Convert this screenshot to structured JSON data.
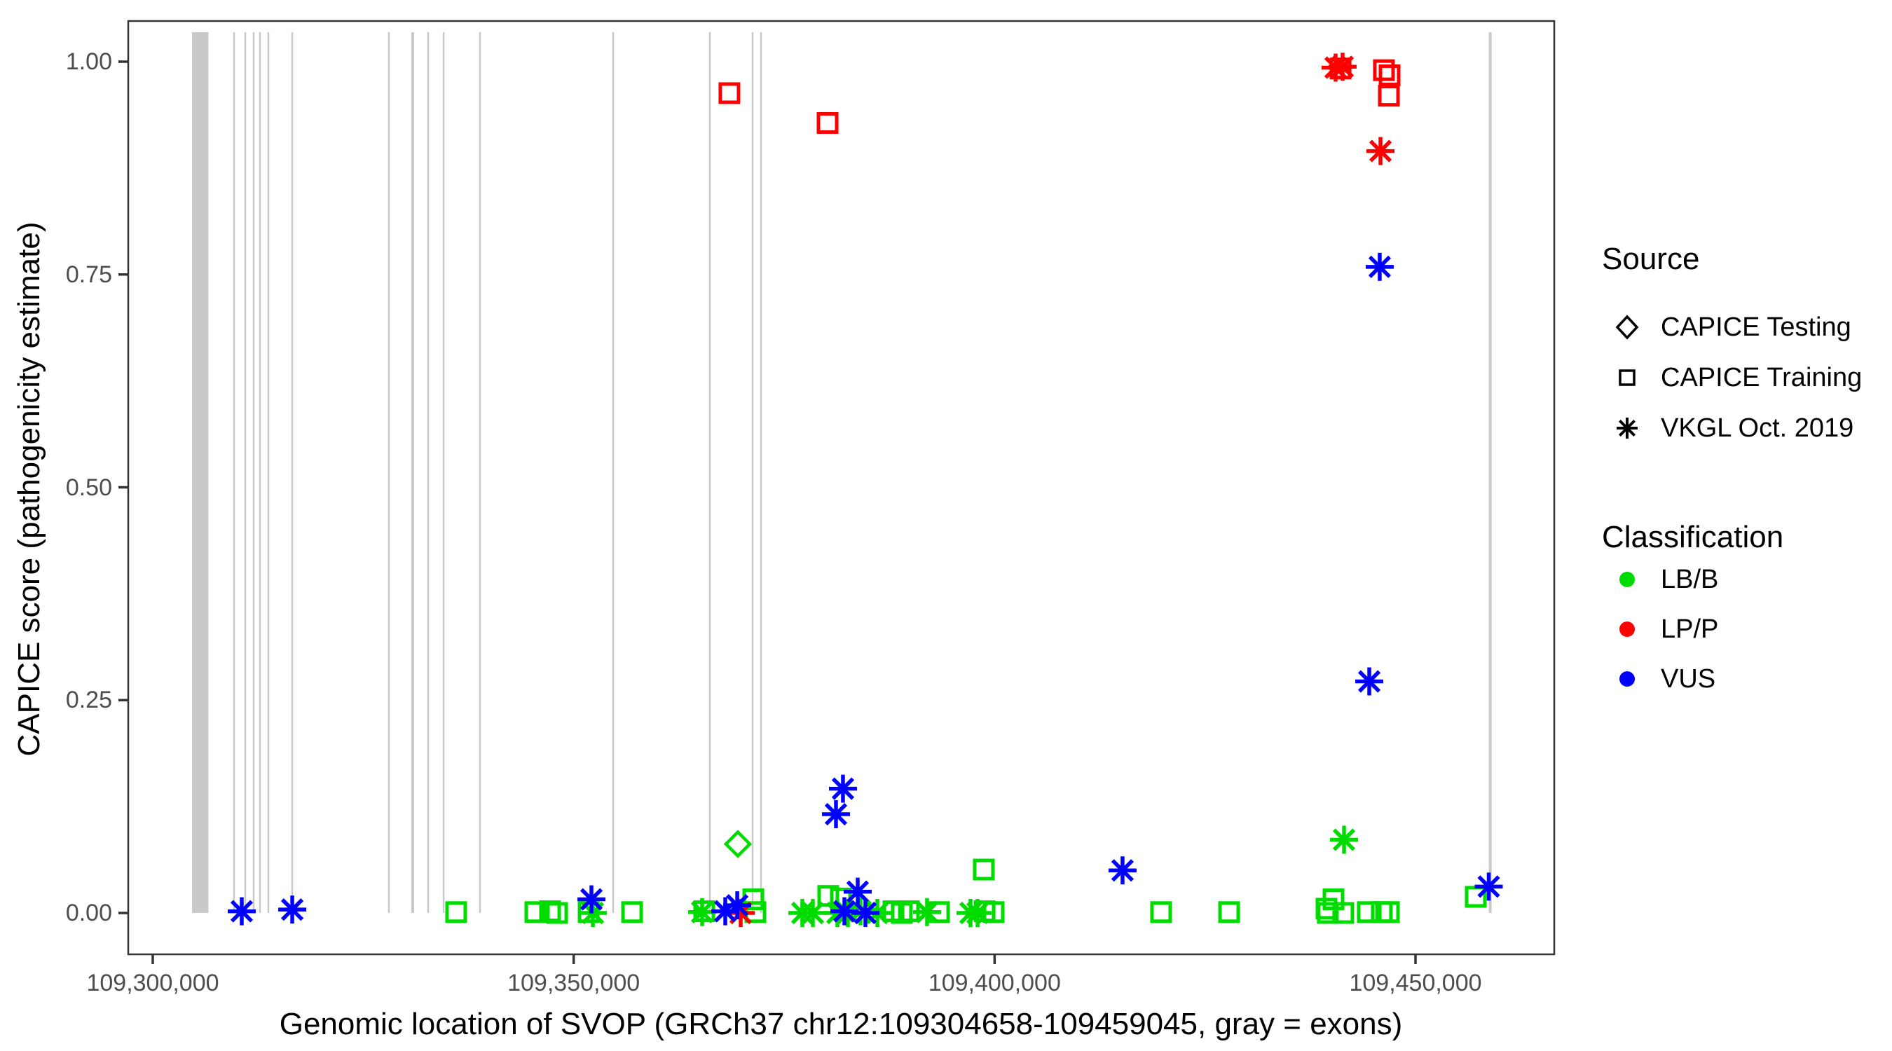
{
  "figure": {
    "x_title": "Genomic location of SVOP (GRCh37 chr12:109304658-109459045, gray = exons)",
    "y_title": "CAPICE score (pathogenicity estimate)"
  },
  "legend": {
    "source": {
      "title": "Source",
      "items": [
        {
          "label": "CAPICE Testing",
          "marker": "diamond"
        },
        {
          "label": "CAPICE Training",
          "marker": "square"
        },
        {
          "label": "VKGL Oct. 2019",
          "marker": "asterisk"
        }
      ]
    },
    "classification": {
      "title": "Classification",
      "items": [
        {
          "label": "LB/B",
          "color": "#00DB00"
        },
        {
          "label": "LP/P",
          "color": "#FF0000"
        },
        {
          "label": "VUS",
          "color": "#0000FF"
        }
      ]
    }
  },
  "chart_data": {
    "type": "scatter",
    "title": "",
    "xlabel": "Genomic location of SVOP (GRCh37 chr12:109304658-109459045, gray = exons)",
    "ylabel": "CAPICE score (pathogenicity estimate)",
    "x_ticks": [
      {
        "value": 109300000,
        "label": "109,300,000"
      },
      {
        "value": 109350000,
        "label": "109,350,000"
      },
      {
        "value": 109400000,
        "label": "109,400,000"
      },
      {
        "value": 109450000,
        "label": "109,450,000"
      }
    ],
    "y_ticks": [
      {
        "value": 0.0,
        "label": "0.00"
      },
      {
        "value": 0.25,
        "label": "0.25"
      },
      {
        "value": 0.5,
        "label": "0.50"
      },
      {
        "value": 0.75,
        "label": "0.75"
      },
      {
        "value": 1.0,
        "label": "1.00"
      }
    ],
    "xlim": [
      109297000,
      109466500
    ],
    "ylim": [
      -0.047,
      1.047
    ],
    "exon_color": "#C9C9C9",
    "exon_note": "gray = exons",
    "exon_segments": [
      {
        "start": 109304658,
        "end": 109306614
      },
      {
        "start": 109309552,
        "end": 109309760
      },
      {
        "start": 109310884,
        "end": 109311092
      },
      {
        "start": 109311883,
        "end": 109312091
      },
      {
        "start": 109312632,
        "end": 109312840
      },
      {
        "start": 109313631,
        "end": 109313839
      },
      {
        "start": 109316461,
        "end": 109316669
      },
      {
        "start": 109327948,
        "end": 109328156
      },
      {
        "start": 109330716,
        "end": 109331048
      },
      {
        "start": 109332609,
        "end": 109332817
      },
      {
        "start": 109334441,
        "end": 109334649
      },
      {
        "start": 109338769,
        "end": 109338977
      },
      {
        "start": 109354585,
        "end": 109354793
      },
      {
        "start": 109366073,
        "end": 109366281
      },
      {
        "start": 109371150,
        "end": 109371358
      },
      {
        "start": 109372149,
        "end": 109372357
      },
      {
        "start": 109458712,
        "end": 109459045
      }
    ],
    "points": [
      {
        "pos": 109368500,
        "score": 0.963,
        "source": "CAPICE Training",
        "classification": "LP/P"
      },
      {
        "pos": 109380160,
        "score": 0.928,
        "source": "CAPICE Training",
        "classification": "LP/P"
      },
      {
        "pos": 109441100,
        "score": 0.992,
        "source": "CAPICE Training",
        "classification": "LP/P"
      },
      {
        "pos": 109446250,
        "score": 0.99,
        "source": "CAPICE Training",
        "classification": "LP/P"
      },
      {
        "pos": 109446920,
        "score": 0.984,
        "source": "CAPICE Training",
        "classification": "LP/P"
      },
      {
        "pos": 109446840,
        "score": 0.96,
        "source": "CAPICE Training",
        "classification": "LP/P"
      },
      {
        "pos": 109336040,
        "score": 0.001,
        "source": "CAPICE Training",
        "classification": "LB/B"
      },
      {
        "pos": 109345450,
        "score": 0.001,
        "source": "CAPICE Training",
        "classification": "LB/B"
      },
      {
        "pos": 109347200,
        "score": 0.002,
        "source": "CAPICE Training",
        "classification": "LB/B"
      },
      {
        "pos": 109348030,
        "score": 0.0,
        "source": "CAPICE Training",
        "classification": "LB/B"
      },
      {
        "pos": 109351780,
        "score": 0.001,
        "source": "CAPICE Training",
        "classification": "LB/B"
      },
      {
        "pos": 109356940,
        "score": 0.001,
        "source": "CAPICE Training",
        "classification": "LB/B"
      },
      {
        "pos": 109365510,
        "score": 0.002,
        "source": "CAPICE Training",
        "classification": "LB/B"
      },
      {
        "pos": 109371340,
        "score": 0.016,
        "source": "CAPICE Training",
        "classification": "LB/B"
      },
      {
        "pos": 109371590,
        "score": 0.001,
        "source": "CAPICE Training",
        "classification": "LB/B"
      },
      {
        "pos": 109380240,
        "score": 0.02,
        "source": "CAPICE Training",
        "classification": "LB/B"
      },
      {
        "pos": 109381740,
        "score": 0.017,
        "source": "CAPICE Training",
        "classification": "LB/B"
      },
      {
        "pos": 109387990,
        "score": 0.002,
        "source": "CAPICE Training",
        "classification": "LB/B"
      },
      {
        "pos": 109388980,
        "score": 0.0,
        "source": "CAPICE Training",
        "classification": "LB/B"
      },
      {
        "pos": 109389820,
        "score": 0.002,
        "source": "CAPICE Training",
        "classification": "LB/B"
      },
      {
        "pos": 109393400,
        "score": 0.001,
        "source": "CAPICE Training",
        "classification": "LB/B"
      },
      {
        "pos": 109398720,
        "score": 0.051,
        "source": "CAPICE Training",
        "classification": "LB/B"
      },
      {
        "pos": 109398810,
        "score": 0.002,
        "source": "CAPICE Training",
        "classification": "LB/B"
      },
      {
        "pos": 109399890,
        "score": 0.001,
        "source": "CAPICE Training",
        "classification": "LB/B"
      },
      {
        "pos": 109419780,
        "score": 0.001,
        "source": "CAPICE Training",
        "classification": "LB/B"
      },
      {
        "pos": 109427860,
        "score": 0.001,
        "source": "CAPICE Training",
        "classification": "LB/B"
      },
      {
        "pos": 109439430,
        "score": 0.005,
        "source": "CAPICE Training",
        "classification": "LB/B"
      },
      {
        "pos": 109439590,
        "score": 0.0,
        "source": "CAPICE Training",
        "classification": "LB/B"
      },
      {
        "pos": 109440260,
        "score": 0.016,
        "source": "CAPICE Training",
        "classification": "LB/B"
      },
      {
        "pos": 109441420,
        "score": 0.0,
        "source": "CAPICE Training",
        "classification": "LB/B"
      },
      {
        "pos": 109444340,
        "score": 0.001,
        "source": "CAPICE Training",
        "classification": "LB/B"
      },
      {
        "pos": 109446000,
        "score": 0.001,
        "source": "CAPICE Training",
        "classification": "LB/B"
      },
      {
        "pos": 109446840,
        "score": 0.001,
        "source": "CAPICE Training",
        "classification": "LB/B"
      },
      {
        "pos": 109457160,
        "score": 0.019,
        "source": "CAPICE Training",
        "classification": "LB/B"
      },
      {
        "pos": 109440510,
        "score": 0.993,
        "source": "VKGL Oct. 2019",
        "classification": "LP/P"
      },
      {
        "pos": 109441340,
        "score": 0.994,
        "source": "VKGL Oct. 2019",
        "classification": "LP/P"
      },
      {
        "pos": 109445840,
        "score": 0.895,
        "source": "VKGL Oct. 2019",
        "classification": "LP/P"
      },
      {
        "pos": 109369840,
        "score": 0.0,
        "source": "VKGL Oct. 2019",
        "classification": "LP/P"
      },
      {
        "pos": 109352280,
        "score": 0.0,
        "source": "VKGL Oct. 2019",
        "classification": "LB/B"
      },
      {
        "pos": 109365260,
        "score": 0.001,
        "source": "VKGL Oct. 2019",
        "classification": "LB/B"
      },
      {
        "pos": 109377160,
        "score": 0.0,
        "source": "VKGL Oct. 2019",
        "classification": "LB/B"
      },
      {
        "pos": 109378410,
        "score": 0.0,
        "source": "VKGL Oct. 2019",
        "classification": "LB/B"
      },
      {
        "pos": 109381330,
        "score": 0.0,
        "source": "VKGL Oct. 2019",
        "classification": "LB/B"
      },
      {
        "pos": 109382570,
        "score": 0.0,
        "source": "VKGL Oct. 2019",
        "classification": "LB/B"
      },
      {
        "pos": 109384070,
        "score": 0.002,
        "source": "VKGL Oct. 2019",
        "classification": "LB/B"
      },
      {
        "pos": 109386070,
        "score": 0.0,
        "source": "VKGL Oct. 2019",
        "classification": "LB/B"
      },
      {
        "pos": 109391980,
        "score": 0.001,
        "source": "VKGL Oct. 2019",
        "classification": "LB/B"
      },
      {
        "pos": 109397140,
        "score": 0.0,
        "source": "VKGL Oct. 2019",
        "classification": "LB/B"
      },
      {
        "pos": 109397980,
        "score": 0.0,
        "source": "VKGL Oct. 2019",
        "classification": "LB/B"
      },
      {
        "pos": 109441510,
        "score": 0.086,
        "source": "VKGL Oct. 2019",
        "classification": "LB/B"
      },
      {
        "pos": 109310570,
        "score": 0.002,
        "source": "VKGL Oct. 2019",
        "classification": "VUS"
      },
      {
        "pos": 109316570,
        "score": 0.004,
        "source": "VKGL Oct. 2019",
        "classification": "VUS"
      },
      {
        "pos": 109352110,
        "score": 0.016,
        "source": "VKGL Oct. 2019",
        "classification": "VUS"
      },
      {
        "pos": 109368010,
        "score": 0.002,
        "source": "VKGL Oct. 2019",
        "classification": "VUS"
      },
      {
        "pos": 109369430,
        "score": 0.009,
        "source": "VKGL Oct. 2019",
        "classification": "VUS"
      },
      {
        "pos": 109381990,
        "score": 0.146,
        "source": "VKGL Oct. 2019",
        "classification": "VUS"
      },
      {
        "pos": 109381160,
        "score": 0.116,
        "source": "VKGL Oct. 2019",
        "classification": "VUS"
      },
      {
        "pos": 109382160,
        "score": 0.002,
        "source": "VKGL Oct. 2019",
        "classification": "VUS"
      },
      {
        "pos": 109383740,
        "score": 0.025,
        "source": "VKGL Oct. 2019",
        "classification": "VUS"
      },
      {
        "pos": 109384660,
        "score": 0.0,
        "source": "VKGL Oct. 2019",
        "classification": "VUS"
      },
      {
        "pos": 109415200,
        "score": 0.05,
        "source": "VKGL Oct. 2019",
        "classification": "VUS"
      },
      {
        "pos": 109444510,
        "score": 0.272,
        "source": "VKGL Oct. 2019",
        "classification": "VUS"
      },
      {
        "pos": 109445750,
        "score": 0.759,
        "source": "VKGL Oct. 2019",
        "classification": "VUS"
      },
      {
        "pos": 109458700,
        "score": 0.031,
        "source": "VKGL Oct. 2019",
        "classification": "VUS"
      },
      {
        "pos": 109369500,
        "score": 0.081,
        "source": "CAPICE Testing",
        "classification": "LB/B"
      }
    ]
  }
}
